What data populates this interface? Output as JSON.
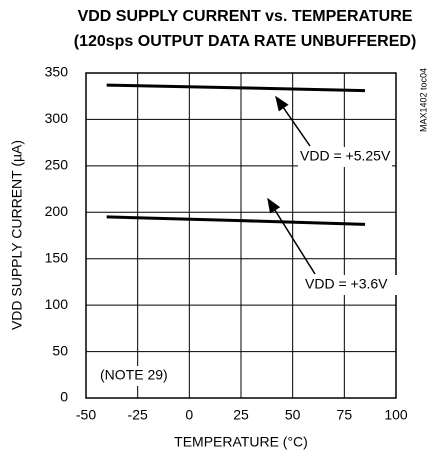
{
  "chart_data": {
    "type": "line",
    "title": "VDD SUPPLY CURRENT vs. TEMPERATURE",
    "subtitle": "(120sps OUTPUT DATA RATE UNBUFFERED)",
    "x_label": "TEMPERATURE (°C)",
    "y_label": "VDD SUPPLY CURRENT (µA)",
    "x": [
      -40,
      25,
      85
    ],
    "series": [
      {
        "name": "VDD = +5.25V",
        "color": "#000000",
        "values": [
          337,
          334,
          331
        ]
      },
      {
        "name": "VDD = +3.6V",
        "color": "#000000",
        "values": [
          195,
          191,
          187
        ]
      }
    ],
    "annotations": [
      "(NOTE 29)",
      "MAX1402 toc04"
    ],
    "xlim": [
      -50,
      100
    ],
    "xticks": [
      -50,
      -25,
      0,
      25,
      50,
      75,
      100
    ],
    "ylim": [
      0,
      350
    ],
    "yticks": [
      0,
      50,
      100,
      150,
      200,
      250,
      300,
      350
    ],
    "grid": true
  }
}
